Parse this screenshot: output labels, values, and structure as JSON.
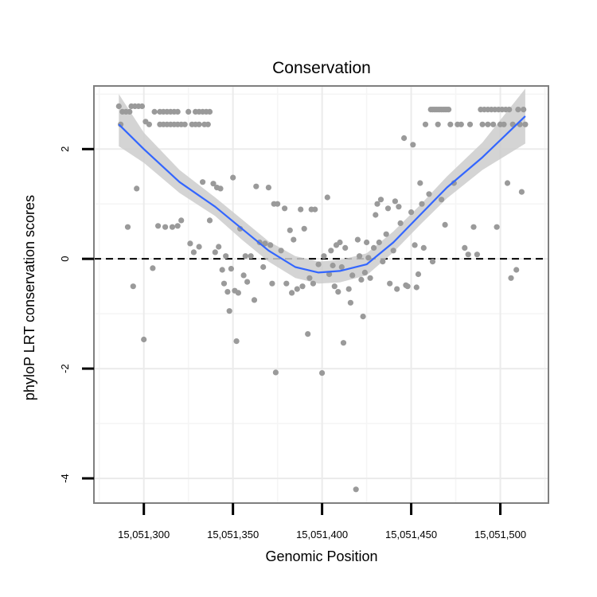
{
  "chart_data": {
    "type": "scatter",
    "title": "Conservation",
    "xlabel": "Genomic Position",
    "ylabel": "phyloP LRT conservation scores",
    "xlim": [
      15051272,
      15051527
    ],
    "ylim": [
      -4.45,
      3.15
    ],
    "x_ticks": [
      15051300,
      15051350,
      15051400,
      15051450,
      15051500
    ],
    "x_tick_labels": [
      "15,051,300",
      "15,051,350",
      "15,051,400",
      "15,051,450",
      "15,051,500"
    ],
    "y_ticks": [
      2,
      0,
      -2,
      -4
    ],
    "y_tick_labels": [
      "2",
      "0",
      "-2",
      "-4"
    ],
    "reference_line": {
      "y": 0,
      "style": "dashed",
      "color": "#000000"
    },
    "colors": {
      "points": "#9a9a9a",
      "smooth": "#3366ff",
      "ribbon": "#cccccc",
      "grid_major": "#ebebeb",
      "grid_minor": "#f5f5f5",
      "border": "#7f7f7f"
    },
    "series": [
      {
        "name": "scores",
        "points": [
          [
            15051286,
            2.78
          ],
          [
            15051288,
            2.68
          ],
          [
            15051290,
            2.68
          ],
          [
            15051292,
            2.68
          ],
          [
            15051287,
            2.45
          ],
          [
            15051293,
            2.78
          ],
          [
            15051295,
            2.78
          ],
          [
            15051297,
            2.78
          ],
          [
            15051299,
            2.78
          ],
          [
            15051301,
            2.5
          ],
          [
            15051303,
            2.45
          ],
          [
            15051291,
            0.58
          ],
          [
            15051294,
            -0.5
          ],
          [
            15051296,
            1.28
          ],
          [
            15051300,
            -1.47
          ],
          [
            15051305,
            -0.17
          ],
          [
            15051306,
            2.68
          ],
          [
            15051308,
            0.6
          ],
          [
            15051309,
            2.68
          ],
          [
            15051311,
            2.68
          ],
          [
            15051313,
            2.68
          ],
          [
            15051315,
            2.68
          ],
          [
            15051317,
            2.68
          ],
          [
            15051319,
            2.68
          ],
          [
            15051309,
            2.45
          ],
          [
            15051311,
            2.45
          ],
          [
            15051313,
            2.45
          ],
          [
            15051315,
            2.45
          ],
          [
            15051317,
            2.45
          ],
          [
            15051319,
            2.45
          ],
          [
            15051321,
            2.45
          ],
          [
            15051323,
            2.45
          ],
          [
            15051312,
            0.58
          ],
          [
            15051316,
            0.58
          ],
          [
            15051319,
            0.6
          ],
          [
            15051321,
            0.7
          ],
          [
            15051325,
            2.68
          ],
          [
            15051326,
            0.28
          ],
          [
            15051328,
            0.12
          ],
          [
            15051329,
            2.68
          ],
          [
            15051331,
            2.68
          ],
          [
            15051333,
            2.68
          ],
          [
            15051335,
            2.68
          ],
          [
            15051337,
            2.68
          ],
          [
            15051327,
            2.45
          ],
          [
            15051329,
            2.45
          ],
          [
            15051331,
            2.45
          ],
          [
            15051334,
            2.45
          ],
          [
            15051336,
            2.45
          ],
          [
            15051331,
            0.22
          ],
          [
            15051333,
            1.4
          ],
          [
            15051337,
            0.7
          ],
          [
            15051339,
            1.37
          ],
          [
            15051340,
            0.12
          ],
          [
            15051341,
            1.3
          ],
          [
            15051342,
            0.22
          ],
          [
            15051343,
            1.28
          ],
          [
            15051344,
            -0.2
          ],
          [
            15051345,
            -0.45
          ],
          [
            15051346,
            0.05
          ],
          [
            15051347,
            -0.6
          ],
          [
            15051348,
            -0.95
          ],
          [
            15051349,
            -0.18
          ],
          [
            15051350,
            1.48
          ],
          [
            15051351,
            -0.58
          ],
          [
            15051352,
            -1.5
          ],
          [
            15051353,
            -0.62
          ],
          [
            15051354,
            0.55
          ],
          [
            15051356,
            -0.3
          ],
          [
            15051357,
            0.05
          ],
          [
            15051358,
            -0.42
          ],
          [
            15051360,
            0.05
          ],
          [
            15051362,
            -0.75
          ],
          [
            15051363,
            1.32
          ],
          [
            15051365,
            0.3
          ],
          [
            15051367,
            -0.15
          ],
          [
            15051368,
            0.28
          ],
          [
            15051370,
            1.3
          ],
          [
            15051371,
            0.25
          ],
          [
            15051372,
            -0.45
          ],
          [
            15051373,
            1.0
          ],
          [
            15051374,
            -2.07
          ],
          [
            15051375,
            1.0
          ],
          [
            15051377,
            0.15
          ],
          [
            15051379,
            0.92
          ],
          [
            15051380,
            -0.45
          ],
          [
            15051382,
            0.52
          ],
          [
            15051383,
            -0.62
          ],
          [
            15051384,
            0.35
          ],
          [
            15051386,
            -0.55
          ],
          [
            15051388,
            0.9
          ],
          [
            15051389,
            -0.5
          ],
          [
            15051390,
            0.55
          ],
          [
            15051392,
            -1.37
          ],
          [
            15051393,
            -0.35
          ],
          [
            15051394,
            0.9
          ],
          [
            15051395,
            -0.45
          ],
          [
            15051396,
            0.9
          ],
          [
            15051398,
            -0.1
          ],
          [
            15051400,
            -2.08
          ],
          [
            15051401,
            0.05
          ],
          [
            15051403,
            1.12
          ],
          [
            15051404,
            -0.28
          ],
          [
            15051405,
            0.15
          ],
          [
            15051406,
            -0.12
          ],
          [
            15051407,
            -0.5
          ],
          [
            15051408,
            0.25
          ],
          [
            15051409,
            -0.6
          ],
          [
            15051410,
            0.3
          ],
          [
            15051411,
            -0.15
          ],
          [
            15051412,
            -1.53
          ],
          [
            15051413,
            0.2
          ],
          [
            15051415,
            -0.55
          ],
          [
            15051416,
            -0.8
          ],
          [
            15051417,
            -0.3
          ],
          [
            15051419,
            -4.2
          ],
          [
            15051420,
            0.35
          ],
          [
            15051421,
            0.05
          ],
          [
            15051422,
            -0.38
          ],
          [
            15051423,
            -1.05
          ],
          [
            15051424,
            -0.25
          ],
          [
            15051425,
            0.3
          ],
          [
            15051426,
            0.02
          ],
          [
            15051427,
            -0.35
          ],
          [
            15051429,
            0.2
          ],
          [
            15051430,
            0.8
          ],
          [
            15051431,
            1.0
          ],
          [
            15051432,
            0.3
          ],
          [
            15051433,
            1.08
          ],
          [
            15051434,
            -0.05
          ],
          [
            15051436,
            0.45
          ],
          [
            15051437,
            0.92
          ],
          [
            15051438,
            -0.45
          ],
          [
            15051440,
            0.15
          ],
          [
            15051441,
            1.05
          ],
          [
            15051442,
            -0.55
          ],
          [
            15051443,
            0.95
          ],
          [
            15051444,
            0.65
          ],
          [
            15051446,
            2.2
          ],
          [
            15051447,
            -0.48
          ],
          [
            15051448,
            -0.5
          ],
          [
            15051450,
            0.85
          ],
          [
            15051451,
            2.08
          ],
          [
            15051452,
            0.25
          ],
          [
            15051453,
            -0.52
          ],
          [
            15051454,
            -0.28
          ],
          [
            15051455,
            1.38
          ],
          [
            15051456,
            1.0
          ],
          [
            15051457,
            0.2
          ],
          [
            15051458,
            2.45
          ],
          [
            15051460,
            1.18
          ],
          [
            15051461,
            2.72
          ],
          [
            15051462,
            2.72
          ],
          [
            15051463,
            2.72
          ],
          [
            15051464,
            2.72
          ],
          [
            15051465,
            2.72
          ],
          [
            15051466,
            2.72
          ],
          [
            15051467,
            2.72
          ],
          [
            15051468,
            2.72
          ],
          [
            15051469,
            2.72
          ],
          [
            15051470,
            2.72
          ],
          [
            15051471,
            2.72
          ],
          [
            15051462,
            -0.05
          ],
          [
            15051465,
            2.45
          ],
          [
            15051467,
            1.08
          ],
          [
            15051469,
            0.62
          ],
          [
            15051472,
            2.45
          ],
          [
            15051474,
            1.38
          ],
          [
            15051476,
            2.45
          ],
          [
            15051478,
            2.45
          ],
          [
            15051480,
            0.2
          ],
          [
            15051482,
            0.08
          ],
          [
            15051483,
            2.45
          ],
          [
            15051485,
            0.58
          ],
          [
            15051487,
            0.08
          ],
          [
            15051489,
            2.72
          ],
          [
            15051491,
            2.72
          ],
          [
            15051493,
            2.72
          ],
          [
            15051495,
            2.72
          ],
          [
            15051497,
            2.72
          ],
          [
            15051499,
            2.72
          ],
          [
            15051501,
            2.72
          ],
          [
            15051503,
            2.72
          ],
          [
            15051505,
            2.72
          ],
          [
            15051490,
            2.45
          ],
          [
            15051493,
            2.45
          ],
          [
            15051496,
            2.45
          ],
          [
            15051498,
            0.58
          ],
          [
            15051500,
            2.45
          ],
          [
            15051502,
            2.45
          ],
          [
            15051504,
            1.38
          ],
          [
            15051506,
            -0.35
          ],
          [
            15051507,
            2.45
          ],
          [
            15051509,
            -0.2
          ],
          [
            15051510,
            2.72
          ],
          [
            15051511,
            2.45
          ],
          [
            15051512,
            1.22
          ],
          [
            15051513,
            2.72
          ],
          [
            15051514,
            2.45
          ]
        ]
      },
      {
        "name": "loess fit",
        "kind": "smooth",
        "x": [
          15051286,
          15051300,
          15051320,
          15051340,
          15051355,
          15051370,
          15051385,
          15051398,
          15051410,
          15051425,
          15051440,
          15051455,
          15051470,
          15051490,
          15051514
        ],
        "y": [
          2.45,
          2.0,
          1.4,
          0.95,
          0.55,
          0.15,
          -0.15,
          -0.25,
          -0.22,
          -0.1,
          0.3,
          0.8,
          1.3,
          1.85,
          2.6
        ],
        "lower": [
          2.05,
          1.75,
          1.2,
          0.78,
          0.35,
          -0.05,
          -0.35,
          -0.45,
          -0.43,
          -0.3,
          0.12,
          0.62,
          1.1,
          1.62,
          2.1
        ],
        "upper": [
          3.0,
          2.3,
          1.62,
          1.12,
          0.72,
          0.32,
          0.05,
          -0.05,
          -0.02,
          0.1,
          0.5,
          0.98,
          1.5,
          2.12,
          3.1
        ]
      }
    ]
  }
}
